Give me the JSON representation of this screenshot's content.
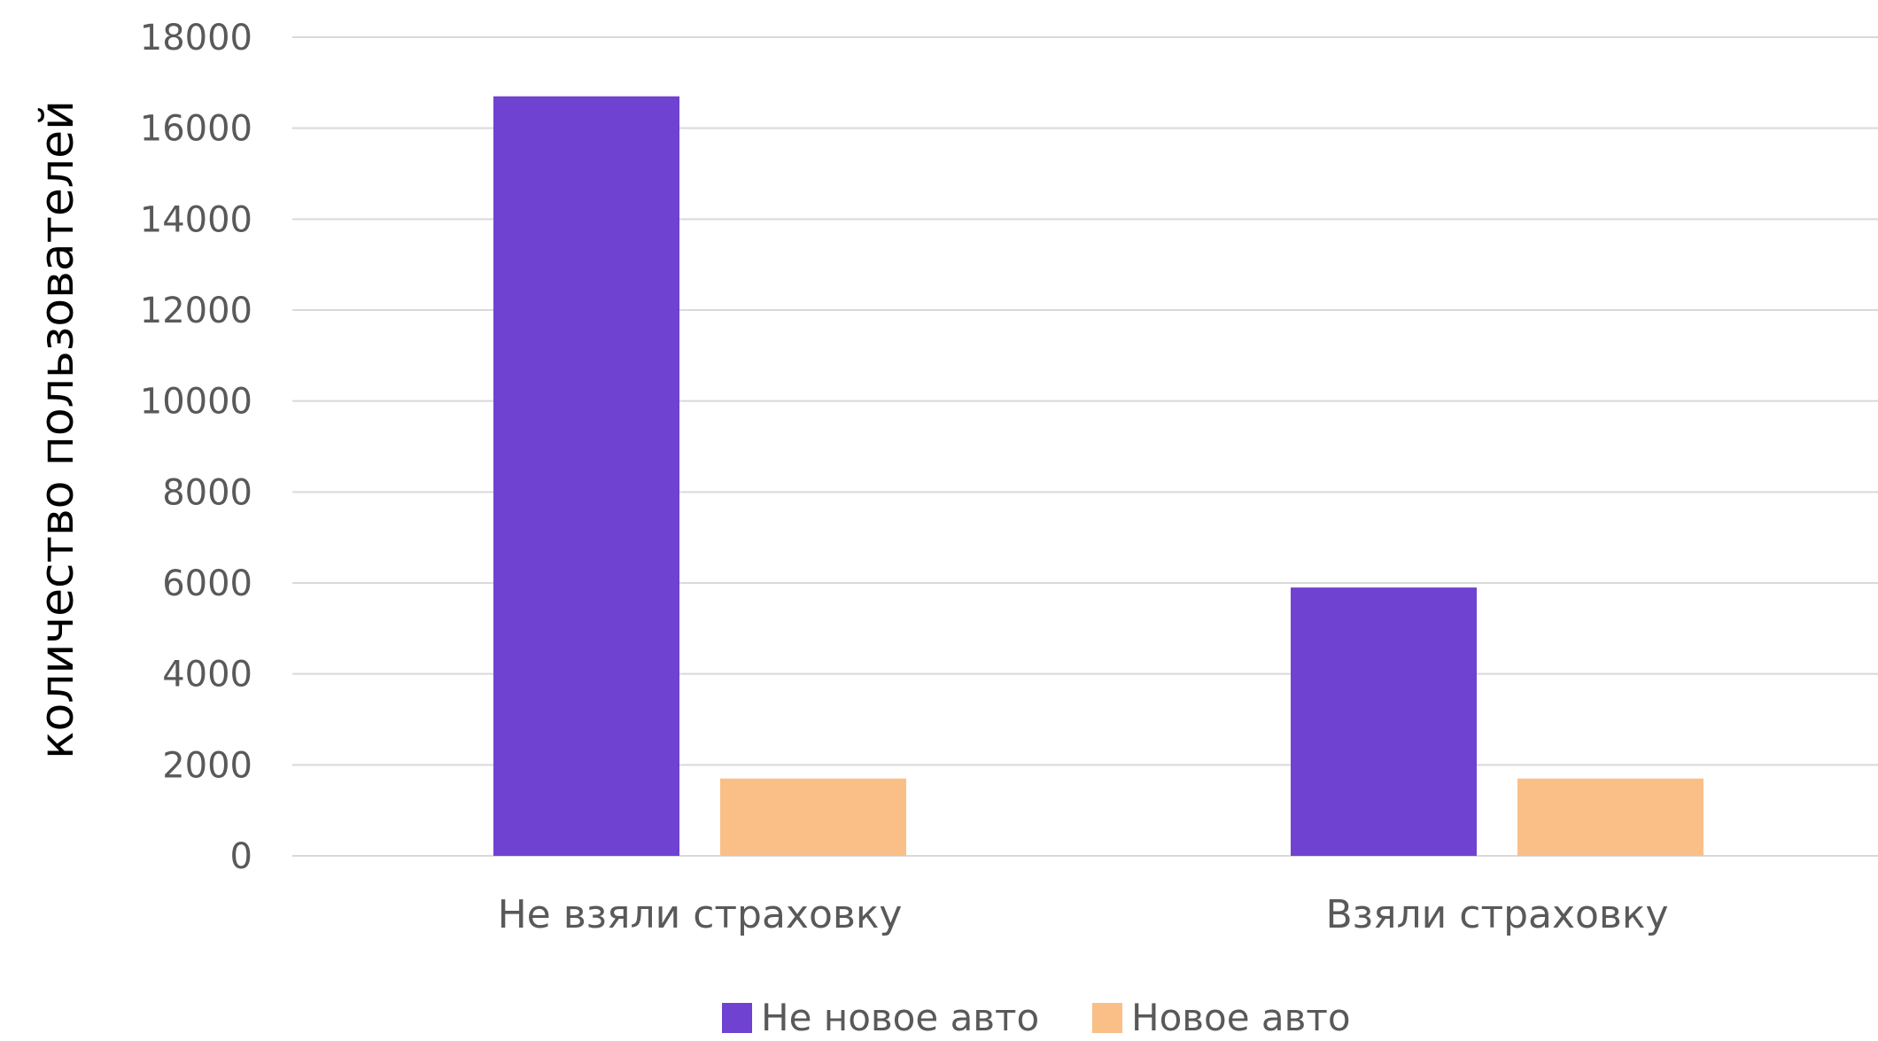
{
  "chart_data": {
    "type": "bar",
    "title": "",
    "xlabel": "",
    "ylabel": "количество пользователей",
    "ylim": [
      0,
      18000
    ],
    "yticks": [
      0,
      2000,
      4000,
      6000,
      8000,
      10000,
      12000,
      14000,
      16000,
      18000
    ],
    "categories": [
      "Не взяли страховку",
      "Взяли страховку"
    ],
    "series": [
      {
        "name": "Не новое авто",
        "color": "#6f42d2",
        "values": [
          16700,
          5900
        ]
      },
      {
        "name": "Новое авто",
        "color": "#f9bf87",
        "values": [
          1700,
          1700
        ]
      }
    ],
    "grid": true,
    "legend": "bottom-center"
  }
}
